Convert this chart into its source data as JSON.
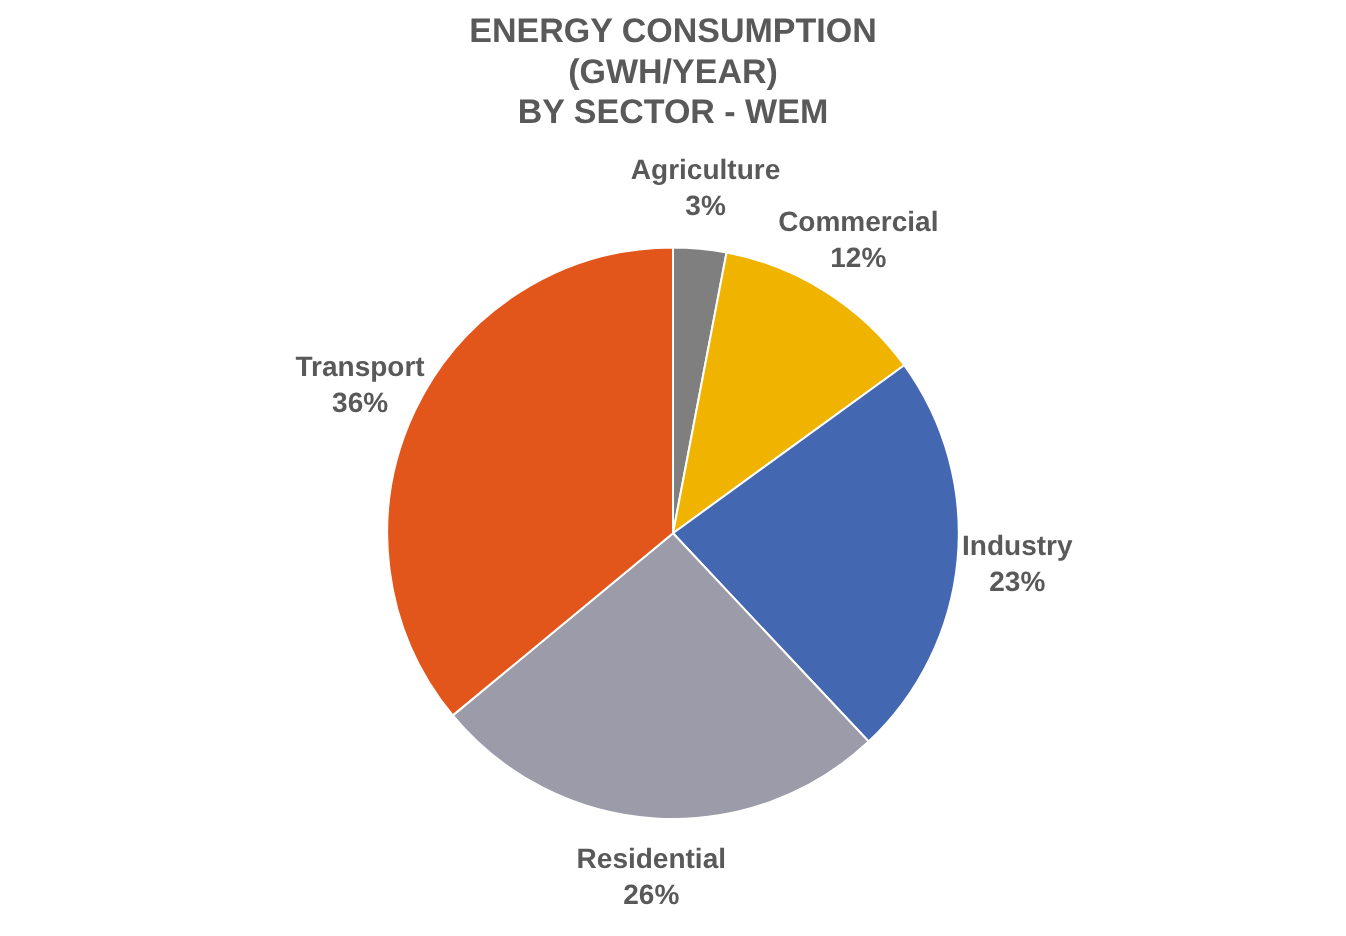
{
  "chart_data": {
    "type": "pie",
    "title": "ENERGY CONSUMPTION\n(GWH/YEAR)\nBY SECTOR - WEM",
    "categories": [
      "Agriculture",
      "Commercial",
      "Industry",
      "Residential",
      "Transport"
    ],
    "values": [
      3,
      12,
      23,
      26,
      36
    ],
    "value_labels": [
      "3%",
      "12%",
      "23%",
      "26%",
      "36%"
    ],
    "colors": [
      "#7f7f7f",
      "#f0b400",
      "#4467b2",
      "#9b9ba9",
      "#e2561c"
    ],
    "legend": false
  }
}
